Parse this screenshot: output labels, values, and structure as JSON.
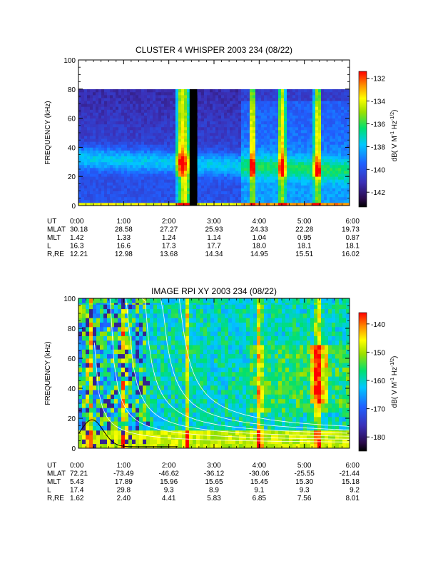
{
  "chart_data": [
    {
      "type": "heatmap",
      "title": "CLUSTER 4 WHISPER 2003 234 (08/22)",
      "ylabel": "FREQUENCY (kHz)",
      "ylim": [
        0,
        100
      ],
      "y_ticks": [
        "0",
        "20",
        "40",
        "60",
        "80",
        "100"
      ],
      "data_ceiling_khz": 80,
      "xlim_hours": [
        0,
        6
      ],
      "x_ticks": [
        "0:00",
        "1:00",
        "2:00",
        "3:00",
        "4:00",
        "5:00",
        "6:00"
      ],
      "colorbar": {
        "range": [
          -143.3,
          -131.4
        ],
        "ticks": [
          "-132",
          "-134",
          "-136",
          "-138",
          "-140",
          "-142"
        ],
        "label": "dB( V M⁻¹ Hz⁻¹ᐟ²)",
        "label_parts": {
          "base": "dB( V M",
          "exp1": "-1",
          "mid": " Hz",
          "exp2": "-1/2",
          "end": ")"
        }
      },
      "data_gaps_hours": [
        [
          2.46,
          2.63
        ]
      ],
      "intense_bursts_hours": [
        2.25,
        2.38,
        3.85,
        4.5,
        5.3
      ],
      "ephemeris": {
        "row_labels": [
          "UT",
          "MLAT",
          "MLT",
          "L",
          "R,RE"
        ],
        "columns": [
          [
            "0:00",
            "30.18",
            "1.42",
            "16.3",
            "12.21"
          ],
          [
            "1:00",
            "28.58",
            "1.33",
            "16.6",
            "12.98"
          ],
          [
            "2:00",
            "27.27",
            "1.24",
            "17.3",
            "13.68"
          ],
          [
            "3:00",
            "25.93",
            "1.14",
            "17.7",
            "14.34"
          ],
          [
            "4:00",
            "24.33",
            "1.04",
            "18.0",
            "14.95"
          ],
          [
            "5:00",
            "22.28",
            "0.95",
            "18.1",
            "15.51"
          ],
          [
            "6:00",
            "19.73",
            "0.87",
            "18.1",
            "16.02"
          ]
        ]
      }
    },
    {
      "type": "heatmap",
      "title": "IMAGE RPI XY 2003 234 (08/22)",
      "ylabel": "FREQUENCY (kHz)",
      "ylim": [
        0,
        100
      ],
      "y_ticks": [
        "0",
        "20",
        "40",
        "60",
        "80",
        "100"
      ],
      "xlim_hours": [
        0,
        6
      ],
      "x_ticks": [
        "0:00",
        "1:00",
        "2:00",
        "3:00",
        "4:00",
        "5:00",
        "6:00"
      ],
      "colorbar": {
        "range": [
          -185,
          -136
        ],
        "ticks": [
          "-140",
          "-150",
          "-160",
          "-170",
          "-180"
        ],
        "label_parts": {
          "base": "dB( V M",
          "exp1": "-1",
          "mid": " Hz",
          "exp2": "-1/2",
          "end": ")"
        }
      },
      "intense_bursts_hours": [
        0.25,
        1.0,
        2.4,
        4.0,
        5.3
      ],
      "ephemeris": {
        "row_labels": [
          "UT",
          "MLAT",
          "MLT",
          "L",
          "R,RE"
        ],
        "columns": [
          [
            "0:00",
            "72.21",
            "5.43",
            "17.4",
            "1.62"
          ],
          [
            "1:00",
            "-73.49",
            "17.89",
            "29.8",
            "2.40"
          ],
          [
            "2:00",
            "-46.62",
            "15.96",
            "9.3",
            "4.41"
          ],
          [
            "3:00",
            "-36.12",
            "15.65",
            "8.9",
            "5.83"
          ],
          [
            "4:00",
            "-30.06",
            "15.45",
            "9.1",
            "6.85"
          ],
          [
            "5:00",
            "-25.55",
            "15.30",
            "9.3",
            "7.56"
          ],
          [
            "6:00",
            "-21.44",
            "15.18",
            "9.2",
            "8.01"
          ]
        ]
      }
    }
  ]
}
